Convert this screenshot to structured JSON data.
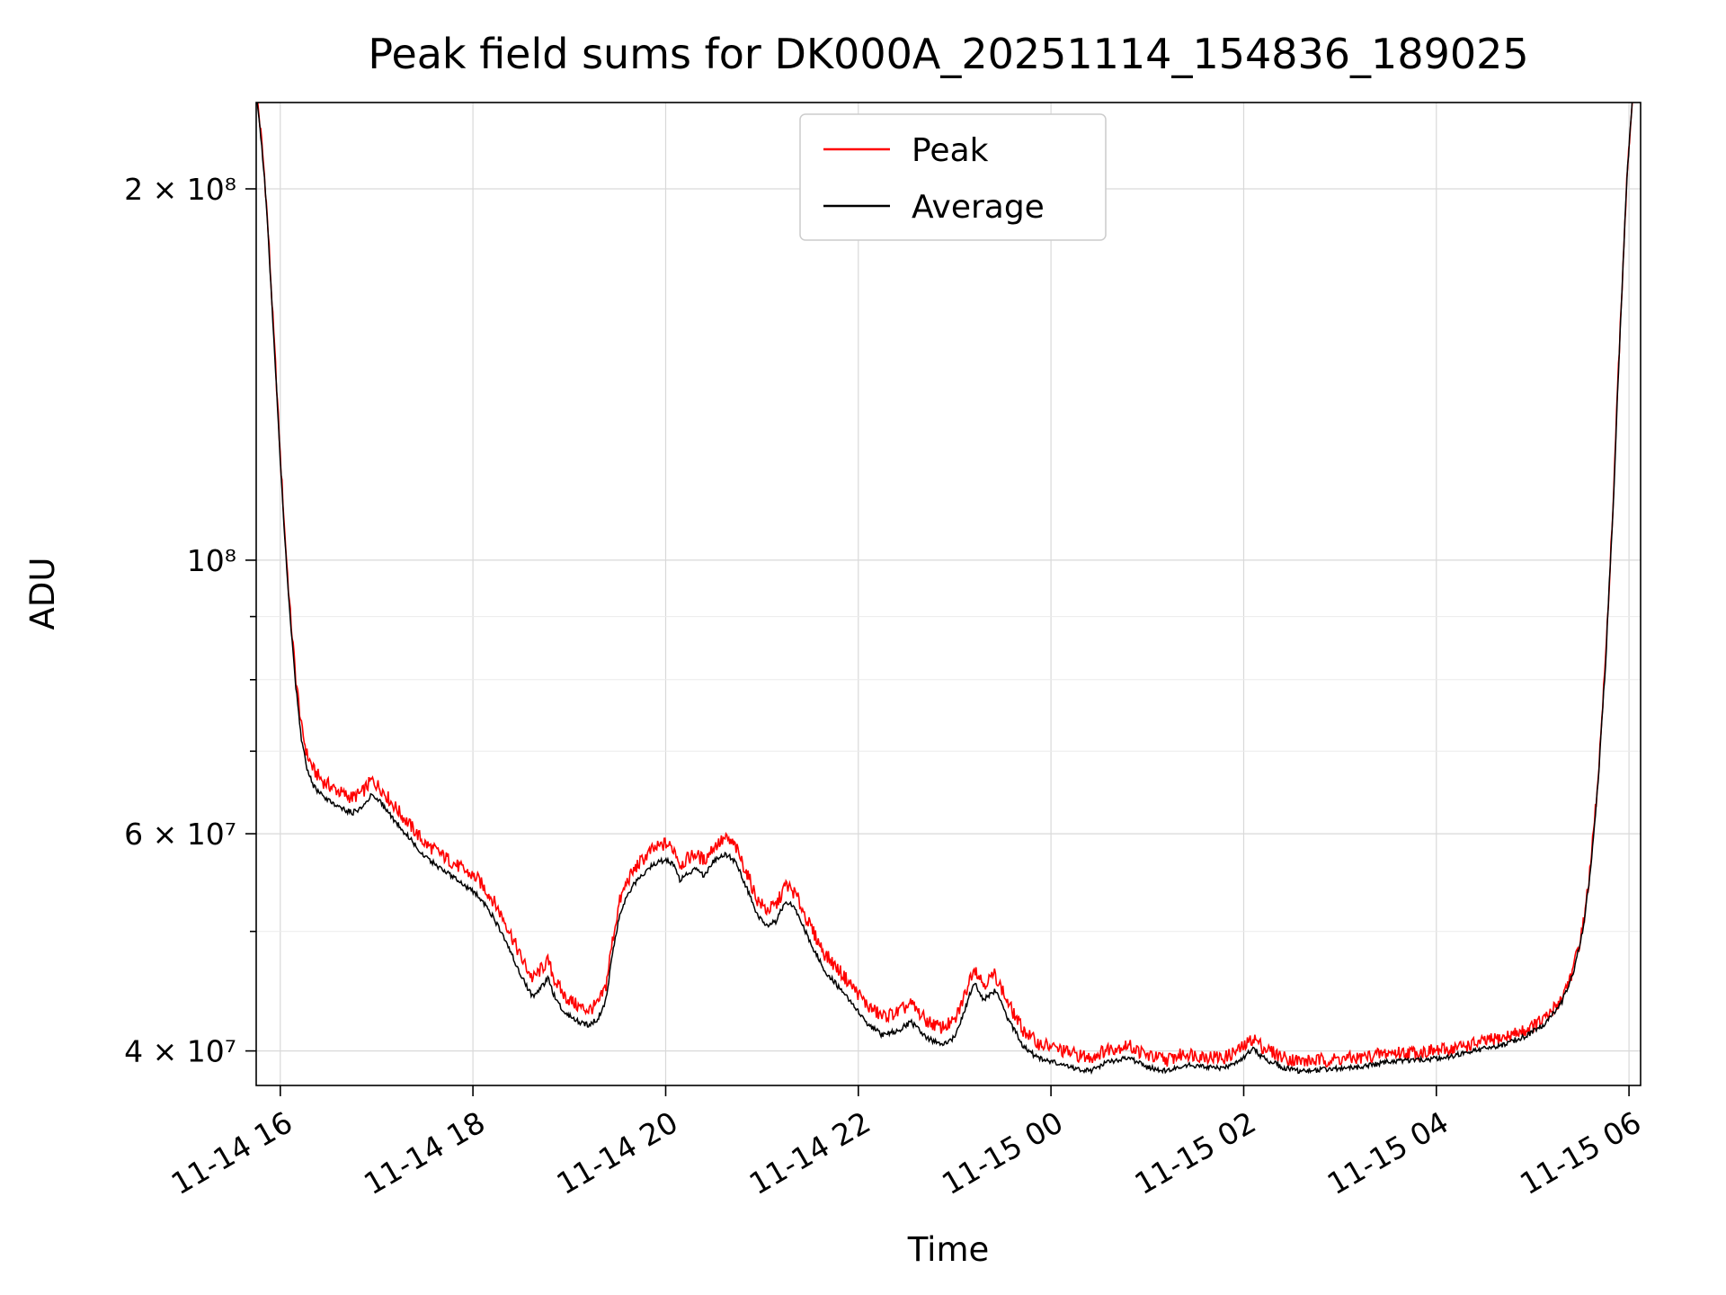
{
  "chart_data": {
    "type": "line",
    "title": "Peak field sums for DK000A_20251114_154836_189025",
    "xlabel": "Time",
    "ylabel": "ADU",
    "y_scale": "log",
    "grid": true,
    "legend_position": "upper center",
    "ylim": [
      37500000.0,
      235000000.0
    ],
    "x_range_hours": [
      15.75,
      30.12
    ],
    "x_unit": "hours since 11-14 00:00 (read from tick labels)",
    "x_ticks": [
      {
        "t": 16,
        "label": "11-14 16"
      },
      {
        "t": 18,
        "label": "11-14 18"
      },
      {
        "t": 20,
        "label": "11-14 20"
      },
      {
        "t": 22,
        "label": "11-14 22"
      },
      {
        "t": 24,
        "label": "11-15 00"
      },
      {
        "t": 26,
        "label": "11-15 02"
      },
      {
        "t": 28,
        "label": "11-15 04"
      },
      {
        "t": 30,
        "label": "11-15 06"
      }
    ],
    "y_ticks": [
      {
        "v": 40000000.0,
        "label": "4 × 10⁷"
      },
      {
        "v": 60000000.0,
        "label": "6 × 10⁷"
      },
      {
        "v": 100000000.0,
        "label": "10⁸"
      },
      {
        "v": 200000000.0,
        "label": "2 × 10⁸"
      }
    ],
    "y_ticks_minor": [
      50000000.0,
      70000000.0,
      80000000.0,
      90000000.0
    ],
    "series": [
      {
        "name": "Peak",
        "color": "#ff0000",
        "noise_pct": 1.3,
        "defined_as": "Average values multiplied by ratio_points (peak envelope slightly above average)",
        "ratio_points": [
          [
            15.75,
            1.004
          ],
          [
            16.1,
            1.012
          ],
          [
            16.3,
            1.03
          ],
          [
            17.0,
            1.028
          ],
          [
            17.5,
            1.025
          ],
          [
            18.0,
            1.03
          ],
          [
            18.6,
            1.035
          ],
          [
            19.0,
            1.03
          ],
          [
            19.5,
            1.025
          ],
          [
            20.0,
            1.03
          ],
          [
            20.5,
            1.028
          ],
          [
            21.0,
            1.03
          ],
          [
            21.5,
            1.03
          ],
          [
            22.0,
            1.035
          ],
          [
            22.5,
            1.035
          ],
          [
            23.0,
            1.03
          ],
          [
            23.5,
            1.03
          ],
          [
            24.0,
            1.028
          ],
          [
            24.5,
            1.025
          ],
          [
            25.0,
            1.022
          ],
          [
            26.0,
            1.02
          ],
          [
            27.0,
            1.018
          ],
          [
            28.0,
            1.015
          ],
          [
            28.8,
            1.012
          ],
          [
            29.3,
            1.008
          ],
          [
            29.6,
            1.005
          ],
          [
            30.12,
            1.003
          ]
        ]
      },
      {
        "name": "Average",
        "color": "#000000",
        "noise_pct": 0.5,
        "points": [
          [
            15.75,
            240000000.0
          ],
          [
            15.8,
            220000000.0
          ],
          [
            15.84,
            202000000.0
          ],
          [
            15.88,
            180000000.0
          ],
          [
            15.92,
            157000000.0
          ],
          [
            15.96,
            138000000.0
          ],
          [
            16.0,
            120000000.0
          ],
          [
            16.05,
            103000000.0
          ],
          [
            16.1,
            90000000.0
          ],
          [
            16.16,
            79000000.0
          ],
          [
            16.22,
            71500000.0
          ],
          [
            16.28,
            67500000.0
          ],
          [
            16.35,
            65500000.0
          ],
          [
            16.45,
            64200000.0
          ],
          [
            16.55,
            63500000.0
          ],
          [
            16.65,
            62800000.0
          ],
          [
            16.75,
            62400000.0
          ],
          [
            16.85,
            63000000.0
          ],
          [
            16.95,
            64500000.0
          ],
          [
            17.05,
            63500000.0
          ],
          [
            17.15,
            62000000.0
          ],
          [
            17.3,
            60000000.0
          ],
          [
            17.5,
            57500000.0
          ],
          [
            17.7,
            56000000.0
          ],
          [
            17.9,
            54500000.0
          ],
          [
            18.05,
            53500000.0
          ],
          [
            18.2,
            51500000.0
          ],
          [
            18.35,
            49000000.0
          ],
          [
            18.5,
            46000000.0
          ],
          [
            18.62,
            44200000.0
          ],
          [
            18.7,
            45000000.0
          ],
          [
            18.78,
            45800000.0
          ],
          [
            18.85,
            44200000.0
          ],
          [
            18.95,
            43000000.0
          ],
          [
            19.1,
            42200000.0
          ],
          [
            19.2,
            42000000.0
          ],
          [
            19.3,
            42500000.0
          ],
          [
            19.38,
            44000000.0
          ],
          [
            19.45,
            48000000.0
          ],
          [
            19.52,
            51500000.0
          ],
          [
            19.6,
            53500000.0
          ],
          [
            19.7,
            55000000.0
          ],
          [
            19.85,
            56500000.0
          ],
          [
            20.0,
            57200000.0
          ],
          [
            20.1,
            56500000.0
          ],
          [
            20.15,
            55000000.0
          ],
          [
            20.3,
            56200000.0
          ],
          [
            20.4,
            55500000.0
          ],
          [
            20.5,
            57000000.0
          ],
          [
            20.62,
            57800000.0
          ],
          [
            20.72,
            57000000.0
          ],
          [
            20.85,
            54000000.0
          ],
          [
            20.95,
            51500000.0
          ],
          [
            21.05,
            50500000.0
          ],
          [
            21.15,
            51000000.0
          ],
          [
            21.25,
            53000000.0
          ],
          [
            21.35,
            52000000.0
          ],
          [
            21.5,
            49000000.0
          ],
          [
            21.65,
            46500000.0
          ],
          [
            21.8,
            45000000.0
          ],
          [
            21.95,
            43500000.0
          ],
          [
            22.1,
            42000000.0
          ],
          [
            22.25,
            41200000.0
          ],
          [
            22.4,
            41500000.0
          ],
          [
            22.55,
            42200000.0
          ],
          [
            22.7,
            41000000.0
          ],
          [
            22.85,
            40500000.0
          ],
          [
            23.0,
            41000000.0
          ],
          [
            23.1,
            43000000.0
          ],
          [
            23.2,
            45500000.0
          ],
          [
            23.3,
            44000000.0
          ],
          [
            23.42,
            44800000.0
          ],
          [
            23.55,
            42500000.0
          ],
          [
            23.7,
            40500000.0
          ],
          [
            23.85,
            39500000.0
          ],
          [
            24.0,
            39200000.0
          ],
          [
            24.2,
            38800000.0
          ],
          [
            24.4,
            38500000.0
          ],
          [
            24.6,
            39200000.0
          ],
          [
            24.8,
            39500000.0
          ],
          [
            25.0,
            38800000.0
          ],
          [
            25.2,
            38500000.0
          ],
          [
            25.4,
            39000000.0
          ],
          [
            25.6,
            38800000.0
          ],
          [
            25.8,
            38700000.0
          ],
          [
            26.0,
            39500000.0
          ],
          [
            26.1,
            40200000.0
          ],
          [
            26.2,
            39500000.0
          ],
          [
            26.4,
            38800000.0
          ],
          [
            26.6,
            38500000.0
          ],
          [
            26.8,
            38600000.0
          ],
          [
            27.0,
            38700000.0
          ],
          [
            27.2,
            38800000.0
          ],
          [
            27.5,
            39200000.0
          ],
          [
            27.8,
            39300000.0
          ],
          [
            28.1,
            39500000.0
          ],
          [
            28.4,
            40000000.0
          ],
          [
            28.7,
            40500000.0
          ],
          [
            28.95,
            41200000.0
          ],
          [
            29.15,
            42200000.0
          ],
          [
            29.3,
            43800000.0
          ],
          [
            29.42,
            46200000.0
          ],
          [
            29.52,
            50000000.0
          ],
          [
            29.6,
            56000000.0
          ],
          [
            29.68,
            66000000.0
          ],
          [
            29.76,
            83000000.0
          ],
          [
            29.84,
            112000000.0
          ],
          [
            29.92,
            160000000.0
          ],
          [
            29.98,
            205000000.0
          ],
          [
            30.05,
            245000000.0
          ]
        ]
      }
    ]
  }
}
